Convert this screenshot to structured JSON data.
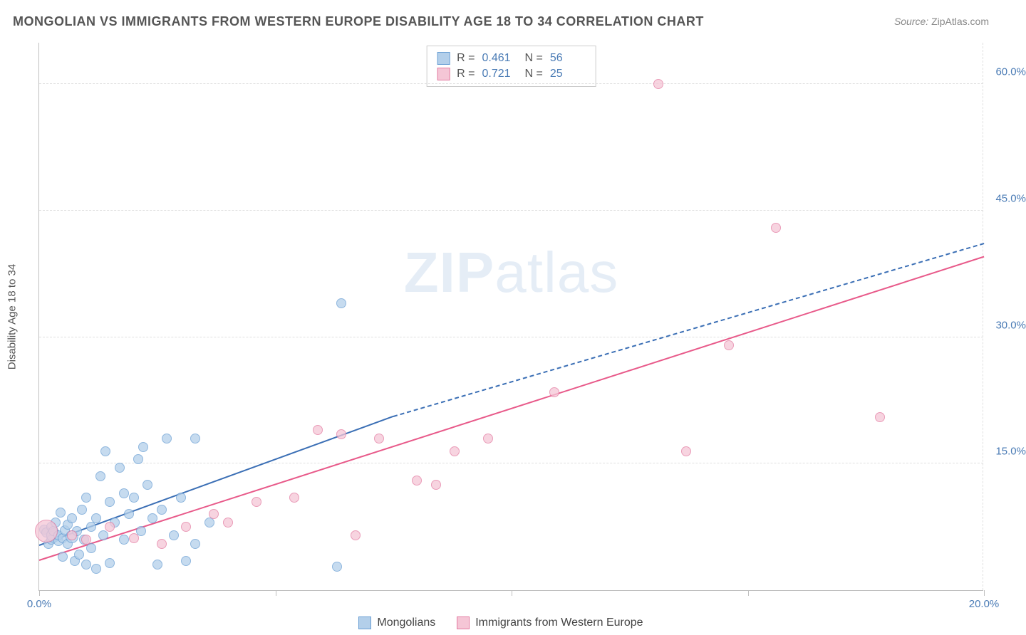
{
  "title": "MONGOLIAN VS IMMIGRANTS FROM WESTERN EUROPE DISABILITY AGE 18 TO 34 CORRELATION CHART",
  "source_label": "Source:",
  "source_value": "ZipAtlas.com",
  "watermark": {
    "bold": "ZIP",
    "thin": "atlas"
  },
  "chart": {
    "type": "scatter",
    "y_axis_title": "Disability Age 18 to 34",
    "xlim": [
      0,
      20
    ],
    "ylim": [
      0,
      65
    ],
    "x_ticks": [
      0,
      5,
      10,
      15,
      20
    ],
    "x_tick_labels": [
      "0.0%",
      "",
      "",
      "",
      "20.0%"
    ],
    "y_ticks": [
      15,
      30,
      45,
      60
    ],
    "y_tick_labels": [
      "15.0%",
      "30.0%",
      "45.0%",
      "60.0%"
    ],
    "grid_color": "#e0e0e0",
    "axis_color": "#bfbfbf",
    "tick_label_color": "#4a7bb5",
    "axis_title_color": "#555555",
    "background_color": "#ffffff",
    "series": [
      {
        "name": "Mongolians",
        "fill": "#b3cfea",
        "stroke": "#6a9fd4",
        "reg_fill": "#3b6fb5",
        "reg_solid": {
          "x1": 0,
          "y1": 5.2,
          "x2": 7.5,
          "y2": 20.5
        },
        "reg_dashed": {
          "x1": 7.5,
          "y1": 20.5,
          "x2": 20,
          "y2": 41.0
        },
        "stats": {
          "R": "0.461",
          "N": "56"
        },
        "points": [
          {
            "x": 0.1,
            "y": 7.2,
            "r": 7
          },
          {
            "x": 0.15,
            "y": 6.8,
            "r": 7
          },
          {
            "x": 0.2,
            "y": 5.5,
            "r": 7
          },
          {
            "x": 0.25,
            "y": 6.0,
            "r": 7
          },
          {
            "x": 0.25,
            "y": 7.5,
            "r": 7
          },
          {
            "x": 0.3,
            "y": 6.5,
            "r": 10
          },
          {
            "x": 0.3,
            "y": 7.0,
            "r": 7
          },
          {
            "x": 0.35,
            "y": 8.0,
            "r": 7
          },
          {
            "x": 0.4,
            "y": 5.8,
            "r": 7
          },
          {
            "x": 0.4,
            "y": 6.5,
            "r": 7
          },
          {
            "x": 0.45,
            "y": 9.2,
            "r": 7
          },
          {
            "x": 0.5,
            "y": 6.2,
            "r": 7
          },
          {
            "x": 0.5,
            "y": 4.0,
            "r": 7
          },
          {
            "x": 0.55,
            "y": 7.1,
            "r": 7
          },
          {
            "x": 0.6,
            "y": 7.8,
            "r": 7
          },
          {
            "x": 0.6,
            "y": 5.5,
            "r": 7
          },
          {
            "x": 0.7,
            "y": 6.3,
            "r": 9
          },
          {
            "x": 0.7,
            "y": 8.5,
            "r": 7
          },
          {
            "x": 0.75,
            "y": 3.5,
            "r": 7
          },
          {
            "x": 0.8,
            "y": 7.0,
            "r": 7
          },
          {
            "x": 0.85,
            "y": 4.2,
            "r": 7
          },
          {
            "x": 0.9,
            "y": 9.5,
            "r": 7
          },
          {
            "x": 0.95,
            "y": 6.0,
            "r": 7
          },
          {
            "x": 1.0,
            "y": 3.0,
            "r": 7
          },
          {
            "x": 1.0,
            "y": 11.0,
            "r": 7
          },
          {
            "x": 1.1,
            "y": 7.5,
            "r": 7
          },
          {
            "x": 1.1,
            "y": 5.0,
            "r": 7
          },
          {
            "x": 1.2,
            "y": 8.5,
            "r": 7
          },
          {
            "x": 1.2,
            "y": 2.5,
            "r": 7
          },
          {
            "x": 1.3,
            "y": 13.5,
            "r": 7
          },
          {
            "x": 1.35,
            "y": 6.5,
            "r": 7
          },
          {
            "x": 1.4,
            "y": 16.5,
            "r": 7
          },
          {
            "x": 1.5,
            "y": 10.5,
            "r": 7
          },
          {
            "x": 1.5,
            "y": 3.2,
            "r": 7
          },
          {
            "x": 1.6,
            "y": 8.0,
            "r": 7
          },
          {
            "x": 1.7,
            "y": 14.5,
            "r": 7
          },
          {
            "x": 1.8,
            "y": 11.5,
            "r": 7
          },
          {
            "x": 1.8,
            "y": 6.0,
            "r": 7
          },
          {
            "x": 1.9,
            "y": 9.0,
            "r": 7
          },
          {
            "x": 2.0,
            "y": 11.0,
            "r": 7
          },
          {
            "x": 2.1,
            "y": 15.5,
            "r": 7
          },
          {
            "x": 2.15,
            "y": 7.0,
            "r": 7
          },
          {
            "x": 2.3,
            "y": 12.5,
            "r": 7
          },
          {
            "x": 2.4,
            "y": 8.5,
            "r": 7
          },
          {
            "x": 2.5,
            "y": 3.0,
            "r": 7
          },
          {
            "x": 2.6,
            "y": 9.5,
            "r": 7
          },
          {
            "x": 2.7,
            "y": 18.0,
            "r": 7
          },
          {
            "x": 2.85,
            "y": 6.5,
            "r": 7
          },
          {
            "x": 3.0,
            "y": 11.0,
            "r": 7
          },
          {
            "x": 3.1,
            "y": 3.5,
            "r": 7
          },
          {
            "x": 3.3,
            "y": 18.0,
            "r": 7
          },
          {
            "x": 3.3,
            "y": 5.5,
            "r": 7
          },
          {
            "x": 3.6,
            "y": 8.0,
            "r": 7
          },
          {
            "x": 6.3,
            "y": 2.8,
            "r": 7
          },
          {
            "x": 6.4,
            "y": 34.0,
            "r": 7
          },
          {
            "x": 2.2,
            "y": 17.0,
            "r": 7
          }
        ]
      },
      {
        "name": "Immigrants from Western Europe",
        "fill": "#f5c6d6",
        "stroke": "#e37ba1",
        "reg_fill": "#e85a8a",
        "reg_solid": {
          "x1": 0,
          "y1": 3.5,
          "x2": 20,
          "y2": 39.5
        },
        "stats": {
          "R": "0.721",
          "N": "25"
        },
        "points": [
          {
            "x": 0.15,
            "y": 7.0,
            "r": 16
          },
          {
            "x": 0.7,
            "y": 6.5,
            "r": 7
          },
          {
            "x": 1.0,
            "y": 6.0,
            "r": 7
          },
          {
            "x": 1.5,
            "y": 7.5,
            "r": 7
          },
          {
            "x": 2.0,
            "y": 6.2,
            "r": 7
          },
          {
            "x": 2.6,
            "y": 5.5,
            "r": 7
          },
          {
            "x": 3.1,
            "y": 7.5,
            "r": 7
          },
          {
            "x": 3.7,
            "y": 9.0,
            "r": 7
          },
          {
            "x": 4.0,
            "y": 8.0,
            "r": 7
          },
          {
            "x": 4.6,
            "y": 10.5,
            "r": 7
          },
          {
            "x": 5.4,
            "y": 11.0,
            "r": 7
          },
          {
            "x": 5.9,
            "y": 19.0,
            "r": 7
          },
          {
            "x": 6.4,
            "y": 18.5,
            "r": 7
          },
          {
            "x": 6.7,
            "y": 6.5,
            "r": 7
          },
          {
            "x": 7.2,
            "y": 18.0,
            "r": 7
          },
          {
            "x": 8.0,
            "y": 13.0,
            "r": 7
          },
          {
            "x": 8.4,
            "y": 12.5,
            "r": 7
          },
          {
            "x": 8.8,
            "y": 16.5,
            "r": 7
          },
          {
            "x": 9.5,
            "y": 18.0,
            "r": 7
          },
          {
            "x": 10.9,
            "y": 23.5,
            "r": 7
          },
          {
            "x": 13.1,
            "y": 60.0,
            "r": 7
          },
          {
            "x": 13.7,
            "y": 16.5,
            "r": 7
          },
          {
            "x": 14.6,
            "y": 29.0,
            "r": 7
          },
          {
            "x": 15.6,
            "y": 43.0,
            "r": 7
          },
          {
            "x": 17.8,
            "y": 20.5,
            "r": 7
          }
        ]
      }
    ]
  },
  "stats_box": {
    "label_R": "R =",
    "label_N": "N ="
  },
  "legend": {
    "items": [
      "Mongolians",
      "Immigrants from Western Europe"
    ]
  }
}
